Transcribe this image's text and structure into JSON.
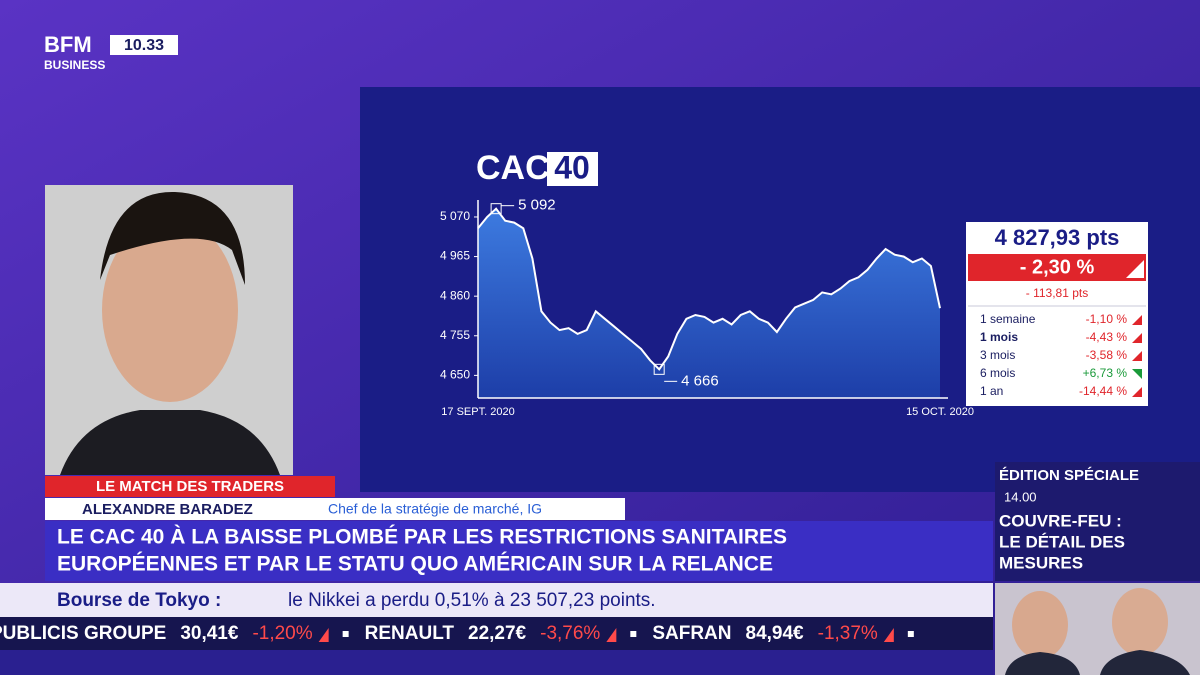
{
  "header": {
    "logo": "BFM",
    "logo_sub": "BUSINESS",
    "clock": "10.33"
  },
  "chart_data": {
    "type": "line",
    "title": "CAC",
    "title_suffix": "40",
    "categories": [
      "17 SEPT. 2020",
      null,
      null,
      null,
      null,
      null,
      null,
      null,
      null,
      null,
      null,
      null,
      null,
      null,
      null,
      null,
      null,
      null,
      null,
      null,
      null,
      null,
      null,
      null,
      null,
      null,
      null,
      null,
      null,
      null,
      null,
      null,
      null,
      null,
      null,
      null,
      null,
      null,
      null,
      null,
      null,
      null,
      null,
      null,
      null,
      null,
      null,
      null,
      null,
      null,
      null,
      "15 OCT. 2020"
    ],
    "values": [
      5040,
      5070,
      5092,
      5060,
      5055,
      5040,
      4960,
      4820,
      4790,
      4770,
      4775,
      4760,
      4770,
      4820,
      4800,
      4780,
      4760,
      4740,
      4720,
      4690,
      4666,
      4700,
      4760,
      4800,
      4810,
      4805,
      4790,
      4800,
      4785,
      4810,
      4820,
      4800,
      4790,
      4765,
      4800,
      4830,
      4840,
      4850,
      4870,
      4865,
      4880,
      4900,
      4910,
      4930,
      4960,
      4985,
      4970,
      4965,
      4950,
      4960,
      4940,
      4828
    ],
    "color": "#ffffff",
    "ylim": [
      4590,
      5115
    ],
    "yticks": [
      {
        "value": 5070,
        "label": "5 070"
      },
      {
        "value": 4965,
        "label": "4 965"
      },
      {
        "value": 4860,
        "label": "4 860"
      },
      {
        "value": 4755,
        "label": "4 755"
      },
      {
        "value": 4650,
        "label": "4 650"
      }
    ],
    "grid": false,
    "annotations": [
      {
        "value": 5092,
        "label": "5 092"
      },
      {
        "value": 4666,
        "label": "4 666"
      }
    ]
  },
  "stats": {
    "last": "4 827,93 pts",
    "change_pct": "- 2,30 %",
    "change_pts": "- 113,81 pts",
    "rows": [
      {
        "period": "1 semaine",
        "change": "-1,10 %"
      },
      {
        "period": "1 mois",
        "change": "-4,43 %"
      },
      {
        "period": "3 mois",
        "change": "-3,58 %"
      },
      {
        "period": "6 mois",
        "change": "+6,73 %"
      },
      {
        "period": "1 an",
        "change": "-14,44 %"
      }
    ]
  },
  "lower_third": {
    "show": "LE MATCH DES TRADERS",
    "guest": "ALEXANDRE BARADEZ",
    "guest_role": "Chef de la stratégie de marché, IG",
    "headline": [
      "LE CAC 40 À LA BAISSE PLOMBÉ PAR LES RESTRICTIONS SANITAIRES",
      "EUROPÉENNES ET PAR LE STATU QUO AMÉRICAIN SUR LA RELANCE"
    ]
  },
  "side_panel": {
    "label": "ÉDITION SPÉCIALE",
    "time": "14.00",
    "title": [
      "COUVRE-FEU :",
      "LE DÉTAIL DES",
      "MESURES"
    ]
  },
  "news_ticker": {
    "source": "Bourse de Tokyo :",
    "text": "le Nikkei a perdu 0,51% à 23 507,23 points."
  },
  "stock_ticker": [
    {
      "name": "PUBLICIS GROUPE",
      "price": "30,41€",
      "change": "-1,20%"
    },
    {
      "name": "RENAULT",
      "price": "22,27€",
      "change": "-3,76%"
    },
    {
      "name": "SAFRAN",
      "price": "84,94€",
      "change": "-1,37%"
    }
  ]
}
